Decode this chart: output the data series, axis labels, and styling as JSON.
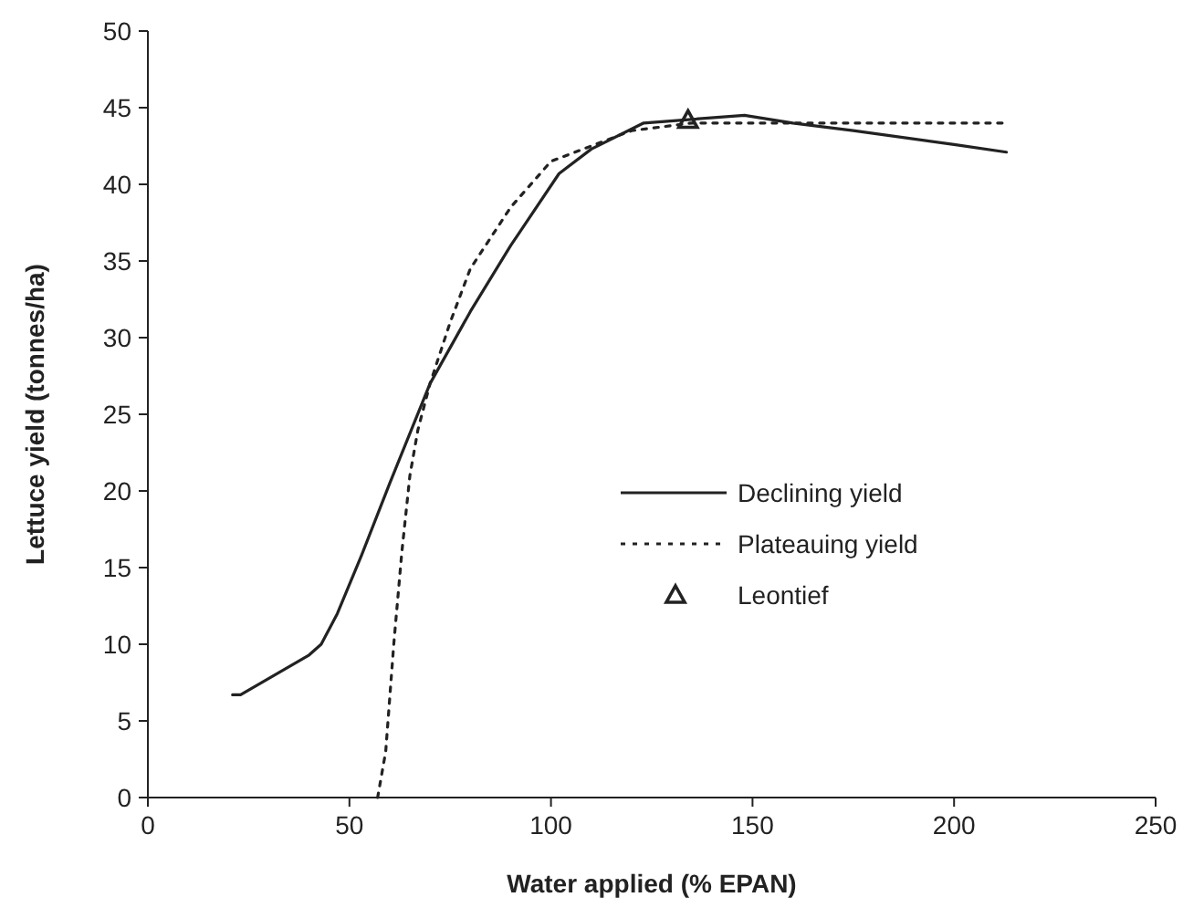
{
  "chart_data": {
    "type": "line",
    "xlabel": "Water applied (% EPAN)",
    "ylabel": "Lettuce yield (tonnes/ha)",
    "xlim": [
      0,
      250
    ],
    "xticks": [
      0,
      50,
      100,
      150,
      200,
      250
    ],
    "ylim": [
      0,
      50
    ],
    "yticks": [
      0,
      5,
      10,
      15,
      20,
      25,
      30,
      35,
      40,
      45,
      50
    ],
    "grid": false,
    "legend": "right",
    "series": [
      {
        "name": "Declining yield",
        "color": "#222222",
        "line_style": "solid",
        "marker": "none",
        "x": [
          21,
          23,
          40,
          43,
          47,
          53,
          60,
          70,
          80,
          90,
          102,
          110,
          123,
          148,
          160,
          175,
          200,
          213
        ],
        "values": [
          6.7,
          6.7,
          9.3,
          10,
          12,
          15.8,
          20.5,
          27,
          31.7,
          36,
          40.7,
          42.3,
          44,
          44.5,
          44,
          43.5,
          42.6,
          42.1
        ]
      },
      {
        "name": "Plateauing yield",
        "color": "#222222",
        "line_style": "dotted",
        "marker": "none",
        "x": [
          57,
          59,
          61,
          63,
          65,
          67,
          70,
          75,
          80,
          90,
          100,
          110,
          120,
          135,
          213
        ],
        "values": [
          0,
          3,
          10,
          16,
          21,
          24,
          27,
          31,
          34.5,
          38.5,
          41.5,
          42.5,
          43.5,
          44,
          44
        ]
      },
      {
        "name": "Leontief",
        "type": "scatter",
        "color": "#222222",
        "marker": "triangle",
        "x": [
          134
        ],
        "values": [
          44.2
        ]
      }
    ]
  }
}
